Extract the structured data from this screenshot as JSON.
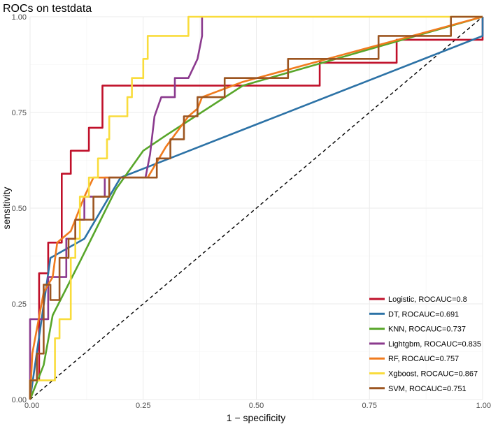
{
  "chart_data": {
    "type": "line",
    "title": "ROCs on testdata",
    "xlabel": "1 − specificity",
    "ylabel": "sensitivity",
    "xlim": [
      0,
      1
    ],
    "ylim": [
      0,
      1
    ],
    "x_ticks": [
      "0.00",
      "0.25",
      "0.50",
      "0.75",
      "1.00"
    ],
    "y_ticks": [
      "0.00",
      "0.25",
      "0.50",
      "0.75",
      "1.00"
    ],
    "grid": true,
    "legend_position": "bottom-right",
    "reference_line": {
      "style": "dashed",
      "color": "#000000",
      "x": [
        0,
        1
      ],
      "y": [
        0,
        1
      ]
    },
    "series": [
      {
        "name": "Logistic, ROCAUC=0.8",
        "color": "#C0102A",
        "x": [
          0,
          0,
          0.02,
          0.02,
          0.04,
          0.04,
          0.055,
          0.055,
          0.07,
          0.07,
          0.08,
          0.08,
          0.09,
          0.09,
          0.13,
          0.13,
          0.16,
          0.16,
          0.64,
          0.64,
          0.81,
          0.81,
          1.0,
          1.0
        ],
        "y": [
          0,
          0.05,
          0.05,
          0.33,
          0.33,
          0.41,
          0.41,
          0.41,
          0.41,
          0.59,
          0.59,
          0.59,
          0.59,
          0.65,
          0.65,
          0.71,
          0.71,
          0.82,
          0.82,
          0.88,
          0.88,
          0.94,
          0.94,
          1.0
        ]
      },
      {
        "name": "DT, ROCAUC=0.691",
        "color": "#2C72A6",
        "x": [
          0,
          0.045,
          0.12,
          0.2,
          1.0,
          1.0
        ],
        "y": [
          0,
          0.37,
          0.42,
          0.58,
          0.95,
          1.0
        ]
      },
      {
        "name": "KNN, ROCAUC=0.737",
        "color": "#58A62A",
        "x": [
          0,
          0.03,
          0.05,
          0.11,
          0.19,
          0.25,
          0.3,
          0.47,
          1.0
        ],
        "y": [
          0,
          0.09,
          0.22,
          0.36,
          0.55,
          0.65,
          0.69,
          0.82,
          1.0
        ]
      },
      {
        "name": "Lightgbm, ROCAUC=0.835",
        "color": "#8B3A8E",
        "x": [
          0,
          0,
          0.04,
          0.04,
          0.08,
          0.08,
          0.1,
          0.1,
          0.12,
          0.12,
          0.14,
          0.14,
          0.165,
          0.165,
          0.255,
          0.265,
          0.27,
          0.275,
          0.29,
          0.32,
          0.32,
          0.35,
          0.37,
          0.38,
          0.38
        ],
        "y": [
          0,
          0.21,
          0.21,
          0.32,
          0.32,
          0.42,
          0.42,
          0.47,
          0.47,
          0.53,
          0.53,
          0.53,
          0.53,
          0.58,
          0.58,
          0.64,
          0.69,
          0.74,
          0.79,
          0.79,
          0.84,
          0.84,
          0.89,
          0.95,
          1.0
        ]
      },
      {
        "name": "RF, ROCAUC=0.757",
        "color": "#F07B1E",
        "x": [
          0,
          0.005,
          0.03,
          0.05,
          0.06,
          0.09,
          0.12,
          0.14,
          0.2,
          0.22,
          0.26,
          0.3,
          0.35,
          0.37,
          0.38,
          0.47,
          1.0
        ],
        "y": [
          0,
          0.12,
          0.28,
          0.32,
          0.41,
          0.44,
          0.53,
          0.58,
          0.58,
          0.58,
          0.58,
          0.66,
          0.74,
          0.76,
          0.79,
          0.83,
          1.0
        ]
      },
      {
        "name": "Xgboost, ROCAUC=0.867",
        "color": "#F9DC3C",
        "x": [
          0,
          0,
          0.045,
          0.045,
          0.055,
          0.055,
          0.065,
          0.065,
          0.075,
          0.075,
          0.09,
          0.09,
          0.1,
          0.1,
          0.11,
          0.11,
          0.12,
          0.12,
          0.13,
          0.13,
          0.15,
          0.15,
          0.17,
          0.17,
          0.175,
          0.175,
          0.18,
          0.18,
          0.215,
          0.215,
          0.225,
          0.225,
          0.25,
          0.25,
          0.26,
          0.26,
          0.29,
          0.29,
          0.35,
          0.35,
          1.0
        ],
        "y": [
          0,
          0.05,
          0.05,
          0.05,
          0.05,
          0.16,
          0.16,
          0.21,
          0.21,
          0.21,
          0.21,
          0.37,
          0.37,
          0.42,
          0.42,
          0.53,
          0.53,
          0.53,
          0.53,
          0.58,
          0.58,
          0.63,
          0.63,
          0.68,
          0.68,
          0.74,
          0.74,
          0.74,
          0.74,
          0.79,
          0.79,
          0.84,
          0.84,
          0.89,
          0.89,
          0.95,
          0.95,
          0.95,
          0.95,
          1.0,
          1.0
        ]
      },
      {
        "name": "SVM, ROCAUC=0.751",
        "color": "#9C5520",
        "x": [
          0,
          0,
          0.015,
          0.015,
          0.03,
          0.03,
          0.045,
          0.045,
          0.065,
          0.065,
          0.085,
          0.085,
          0.1,
          0.1,
          0.14,
          0.14,
          0.165,
          0.165,
          0.175,
          0.175,
          0.28,
          0.28,
          0.31,
          0.31,
          0.34,
          0.34,
          0.37,
          0.37,
          0.43,
          0.43,
          0.57,
          0.57,
          0.77,
          0.77,
          0.93,
          0.93,
          1.0
        ],
        "y": [
          0,
          0.05,
          0.05,
          0.12,
          0.12,
          0.3,
          0.3,
          0.26,
          0.26,
          0.37,
          0.37,
          0.42,
          0.42,
          0.47,
          0.47,
          0.53,
          0.53,
          0.53,
          0.53,
          0.58,
          0.58,
          0.63,
          0.63,
          0.68,
          0.68,
          0.74,
          0.74,
          0.79,
          0.79,
          0.84,
          0.84,
          0.89,
          0.89,
          0.95,
          0.95,
          1.0,
          1.0
        ]
      }
    ]
  }
}
